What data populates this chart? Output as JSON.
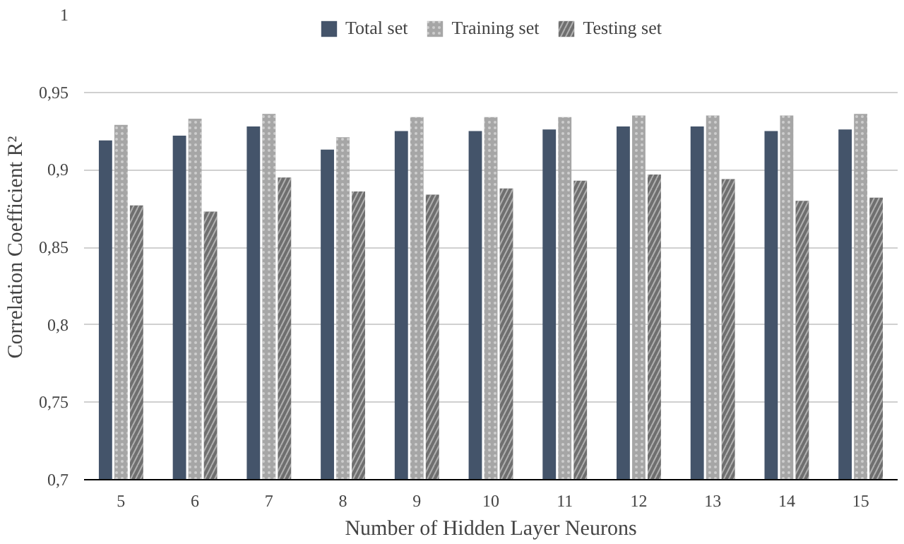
{
  "chart_data": {
    "type": "bar",
    "xlabel": "Number of Hidden Layer Neurons",
    "ylabel": "Correlation Coefficient R²",
    "categories": [
      "5",
      "6",
      "7",
      "8",
      "9",
      "10",
      "11",
      "12",
      "13",
      "14",
      "15"
    ],
    "series": [
      {
        "name": "Total set",
        "color": "#44546a",
        "values": [
          0.919,
          0.922,
          0.928,
          0.913,
          0.925,
          0.925,
          0.926,
          0.928,
          0.928,
          0.925,
          0.926
        ]
      },
      {
        "name": "Training set",
        "color": "#a6a6a6",
        "values": [
          0.929,
          0.933,
          0.936,
          0.921,
          0.934,
          0.934,
          0.934,
          0.935,
          0.935,
          0.935,
          0.936
        ]
      },
      {
        "name": "Testing set",
        "color": "#6f6f6f",
        "values": [
          0.877,
          0.873,
          0.895,
          0.886,
          0.884,
          0.888,
          0.893,
          0.897,
          0.894,
          0.88,
          0.882
        ]
      }
    ],
    "ylim": [
      0.7,
      1
    ],
    "yticks": [
      {
        "value": 0.7,
        "label": "0,7"
      },
      {
        "value": 0.75,
        "label": "0,75"
      },
      {
        "value": 0.8,
        "label": "0,8"
      },
      {
        "value": 0.85,
        "label": "0,85"
      },
      {
        "value": 0.9,
        "label": "0,9"
      },
      {
        "value": 0.95,
        "label": "0,95"
      },
      {
        "value": 1,
        "label": "1"
      }
    ],
    "grid": "y",
    "legend": "top"
  }
}
